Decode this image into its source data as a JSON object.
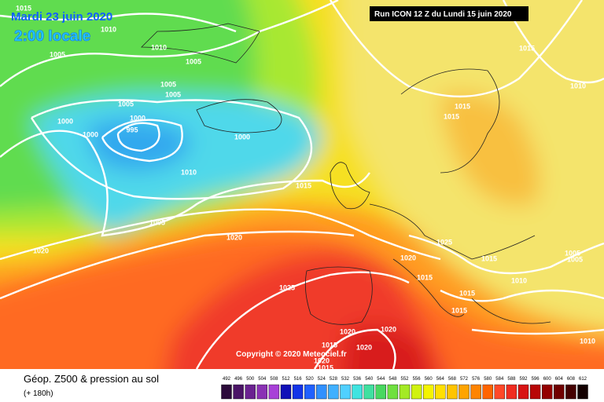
{
  "header": {
    "date": "Mardi 23 juin 2020",
    "time": "2:00 locale",
    "run": "Run ICON 12 Z du Lundi 15 juin 2020",
    "copyright": "Copyright © 2020 Meteociel.fr"
  },
  "footer": {
    "title": "Géop. Z500 & pression au sol",
    "lead": "(+ 180h)"
  },
  "legend": {
    "labels": [
      492,
      496,
      500,
      504,
      508,
      512,
      516,
      520,
      524,
      528,
      532,
      536,
      540,
      544,
      548,
      552,
      556,
      560,
      564,
      568,
      572,
      576,
      580,
      584,
      588,
      592,
      596,
      600,
      604,
      608,
      612
    ],
    "colors": [
      "#2c0a3a",
      "#4a1466",
      "#6a2290",
      "#8a32b4",
      "#a840d8",
      "#1010b8",
      "#1434e8",
      "#2060ff",
      "#3090ff",
      "#40b0ff",
      "#50d0ff",
      "#40e4e0",
      "#40e0a0",
      "#48d860",
      "#70e040",
      "#a4ea24",
      "#d0f210",
      "#f4f400",
      "#ffe000",
      "#ffc400",
      "#ffa400",
      "#ff8400",
      "#ff6400",
      "#ff4828",
      "#f02c20",
      "#d81414",
      "#b80606",
      "#940000",
      "#700000",
      "#440000",
      "#140000"
    ]
  },
  "isobars": [
    1015,
    1010,
    1005,
    1010,
    1005,
    1005,
    1005,
    1005,
    1000,
    1000,
    995,
    1000,
    1000,
    1010,
    1015,
    1005,
    1020,
    1020,
    1025,
    1025,
    1020,
    1015,
    1015,
    1005,
    1005,
    1010,
    1015,
    1015,
    1015,
    1015,
    1015,
    1010,
    1020,
    1020,
    1020,
    1015,
    1020,
    1015,
    1010
  ]
}
